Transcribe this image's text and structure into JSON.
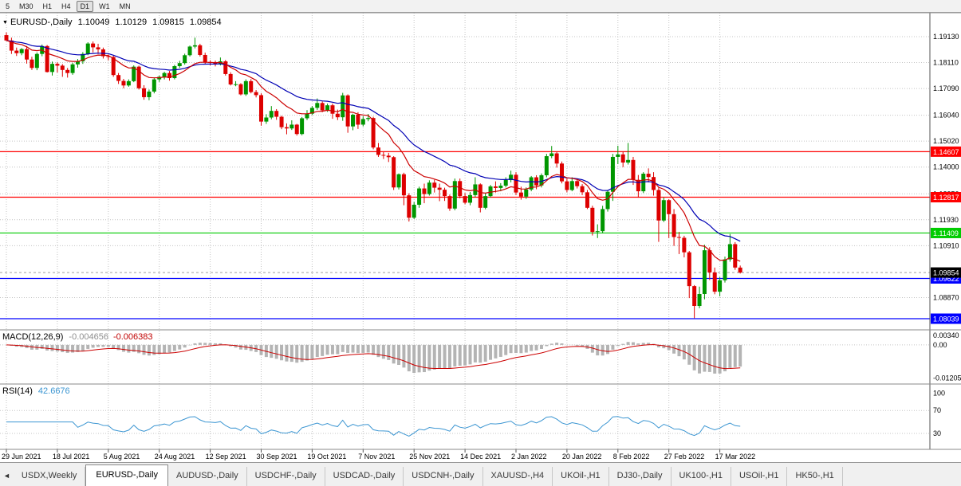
{
  "toolbar": {
    "timeframes": [
      "5",
      "M30",
      "H1",
      "H4",
      "D1",
      "W1",
      "MN"
    ],
    "active_timeframe": "D1"
  },
  "chart_header": {
    "collapse_icon": "▼",
    "symbol": "EURUSD-,Daily",
    "open": "1.10049",
    "high": "1.10129",
    "low": "1.09815",
    "close": "1.09854"
  },
  "tabs": {
    "scroll_left_icon": "◄",
    "active_index": 1,
    "items": [
      "USDX,Weekly",
      "EURUSD-,Daily",
      "AUDUSD-,Daily",
      "USDCHF-,Daily",
      "USDCAD-,Daily",
      "USDCNH-,Daily",
      "XAUUSD-,H4",
      "UKOil-,H1",
      "DJ30-,Daily",
      "UK100-,H1",
      "USOil-,H1",
      "HK50-,H1"
    ]
  },
  "chart_data": {
    "type": "candlestick",
    "title": "EURUSD-,Daily",
    "price_axis": {
      "gridline_values": [
        1.1913,
        1.1811,
        1.1709,
        1.1604,
        1.1502,
        1.14,
        1.1295,
        1.1193,
        1.1091,
        1.0887
      ],
      "gridline_labels": [
        "1.19130",
        "1.18110",
        "1.17090",
        "1.16040",
        "1.15020",
        "1.14000",
        "1.12950",
        "1.11930",
        "1.10910",
        "1.08870"
      ]
    },
    "hlines": [
      {
        "price": 1.14607,
        "label": "1.14607",
        "color": "#ff0000"
      },
      {
        "price": 1.12817,
        "label": "1.12817",
        "color": "#ff0000"
      },
      {
        "price": 1.11409,
        "label": "1.11409",
        "color": "#00cc00"
      },
      {
        "price": 1.09622,
        "label": "1.09622",
        "color": "#0000ff"
      },
      {
        "price": 1.08039,
        "label": "1.08039",
        "color": "#0000ff"
      }
    ],
    "current_price": {
      "value": 1.09854,
      "label": "1.09854"
    },
    "date_ticks": [
      "29 Jun 2021",
      "18 Jul 2021",
      "5 Aug 2021",
      "24 Aug 2021",
      "12 Sep 2021",
      "30 Sep 2021",
      "19 Oct 2021",
      "7 Nov 2021",
      "25 Nov 2021",
      "14 Dec 2021",
      "2 Jan 2022",
      "20 Jan 2022",
      "8 Feb 2022",
      "27 Feb 2022",
      "17 Mar 2022"
    ],
    "candles_per_tick": 10,
    "candles": [
      [
        1.1919,
        1.193,
        1.1896,
        1.1898
      ],
      [
        1.1898,
        1.1909,
        1.1845,
        1.1858
      ],
      [
        1.1858,
        1.187,
        1.1837,
        1.1848
      ],
      [
        1.1848,
        1.1868,
        1.184,
        1.1864
      ],
      [
        1.1864,
        1.1876,
        1.1807,
        1.1823
      ],
      [
        1.1823,
        1.1834,
        1.1782,
        1.179
      ],
      [
        1.179,
        1.1851,
        1.1781,
        1.1845
      ],
      [
        1.1845,
        1.1882,
        1.1836,
        1.1876
      ],
      [
        1.1876,
        1.188,
        1.1772,
        1.1774
      ],
      [
        1.1774,
        1.1815,
        1.176,
        1.1806
      ],
      [
        1.1806,
        1.1812,
        1.1772,
        1.1799
      ],
      [
        1.1799,
        1.1805,
        1.1755,
        1.1782
      ],
      [
        1.1782,
        1.179,
        1.1752,
        1.177
      ],
      [
        1.177,
        1.181,
        1.1763,
        1.1804
      ],
      [
        1.1804,
        1.1825,
        1.1791,
        1.1816
      ],
      [
        1.1816,
        1.1852,
        1.1806,
        1.1845
      ],
      [
        1.1845,
        1.1891,
        1.184,
        1.1886
      ],
      [
        1.1886,
        1.1894,
        1.1851,
        1.1871
      ],
      [
        1.1871,
        1.1885,
        1.1845,
        1.1863
      ],
      [
        1.1863,
        1.187,
        1.1827,
        1.1836
      ],
      [
        1.1836,
        1.1843,
        1.182,
        1.1833
      ],
      [
        1.1833,
        1.1838,
        1.1755,
        1.1762
      ],
      [
        1.1762,
        1.177,
        1.1727,
        1.1739
      ],
      [
        1.1739,
        1.1747,
        1.171,
        1.1721
      ],
      [
        1.1721,
        1.1745,
        1.1716,
        1.1738
      ],
      [
        1.1738,
        1.18,
        1.1734,
        1.1795
      ],
      [
        1.1795,
        1.1799,
        1.1705,
        1.171
      ],
      [
        1.171,
        1.1722,
        1.1665,
        1.1675
      ],
      [
        1.1675,
        1.1705,
        1.1663,
        1.1697
      ],
      [
        1.1697,
        1.1752,
        1.169,
        1.1745
      ],
      [
        1.1745,
        1.176,
        1.1735,
        1.1755
      ],
      [
        1.1755,
        1.1775,
        1.1745,
        1.177
      ],
      [
        1.177,
        1.1778,
        1.174,
        1.175
      ],
      [
        1.175,
        1.1802,
        1.1745,
        1.1797
      ],
      [
        1.1797,
        1.1818,
        1.179,
        1.1809
      ],
      [
        1.1809,
        1.1846,
        1.1803,
        1.184
      ],
      [
        1.184,
        1.1878,
        1.1835,
        1.1874
      ],
      [
        1.1874,
        1.1909,
        1.1867,
        1.1879
      ],
      [
        1.1879,
        1.1885,
        1.1835,
        1.1841
      ],
      [
        1.1841,
        1.185,
        1.1805,
        1.1813
      ],
      [
        1.1813,
        1.182,
        1.18,
        1.181
      ],
      [
        1.181,
        1.1819,
        1.1796,
        1.1805
      ],
      [
        1.1805,
        1.1831,
        1.18,
        1.1816
      ],
      [
        1.1816,
        1.1821,
        1.176,
        1.1766
      ],
      [
        1.1766,
        1.1773,
        1.1721,
        1.1725
      ],
      [
        1.1725,
        1.1738,
        1.1718,
        1.1726
      ],
      [
        1.1726,
        1.173,
        1.1682,
        1.1686
      ],
      [
        1.1686,
        1.1745,
        1.168,
        1.1738
      ],
      [
        1.1738,
        1.1746,
        1.169,
        1.1695
      ],
      [
        1.1695,
        1.1703,
        1.1674,
        1.1683
      ],
      [
        1.1683,
        1.169,
        1.1563,
        1.1579
      ],
      [
        1.1579,
        1.1608,
        1.157,
        1.1595
      ],
      [
        1.1595,
        1.164,
        1.1588,
        1.1621
      ],
      [
        1.1621,
        1.1628,
        1.1586,
        1.1598
      ],
      [
        1.1598,
        1.1602,
        1.1549,
        1.1557
      ],
      [
        1.1557,
        1.1572,
        1.1529,
        1.1552
      ],
      [
        1.1552,
        1.1584,
        1.1546,
        1.1567
      ],
      [
        1.1567,
        1.157,
        1.1524,
        1.153
      ],
      [
        1.153,
        1.1597,
        1.1525,
        1.1592
      ],
      [
        1.1592,
        1.1624,
        1.1585,
        1.161
      ],
      [
        1.161,
        1.164,
        1.1605,
        1.1633
      ],
      [
        1.1633,
        1.167,
        1.1625,
        1.1652
      ],
      [
        1.1652,
        1.1658,
        1.1616,
        1.1623
      ],
      [
        1.1623,
        1.165,
        1.1617,
        1.1643
      ],
      [
        1.1643,
        1.165,
        1.159,
        1.161
      ],
      [
        1.161,
        1.1626,
        1.1585,
        1.1596
      ],
      [
        1.1596,
        1.1692,
        1.1582,
        1.1682
      ],
      [
        1.1682,
        1.1686,
        1.1535,
        1.156
      ],
      [
        1.156,
        1.161,
        1.1545,
        1.1606
      ],
      [
        1.1606,
        1.1616,
        1.155,
        1.1567
      ],
      [
        1.1567,
        1.16,
        1.156,
        1.1589
      ],
      [
        1.1589,
        1.1609,
        1.158,
        1.1593
      ],
      [
        1.1593,
        1.1598,
        1.147,
        1.1477
      ],
      [
        1.1477,
        1.1495,
        1.144,
        1.1448
      ],
      [
        1.1448,
        1.146,
        1.1432,
        1.1445
      ],
      [
        1.1445,
        1.1456,
        1.142,
        1.1439
      ],
      [
        1.1439,
        1.1443,
        1.131,
        1.132
      ],
      [
        1.132,
        1.1375,
        1.1312,
        1.1372
      ],
      [
        1.1372,
        1.1378,
        1.125,
        1.1289
      ],
      [
        1.1289,
        1.1297,
        1.1186,
        1.1201
      ],
      [
        1.1201,
        1.1263,
        1.1196,
        1.1252
      ],
      [
        1.1252,
        1.1323,
        1.124,
        1.1316
      ],
      [
        1.1316,
        1.1335,
        1.1258,
        1.1294
      ],
      [
        1.1294,
        1.1348,
        1.1288,
        1.1339
      ],
      [
        1.1339,
        1.135,
        1.13,
        1.1319
      ],
      [
        1.1319,
        1.1335,
        1.1266,
        1.1311
      ],
      [
        1.1311,
        1.1319,
        1.1267,
        1.1286
      ],
      [
        1.1286,
        1.1292,
        1.1228,
        1.1237
      ],
      [
        1.1237,
        1.1355,
        1.123,
        1.1345
      ],
      [
        1.1345,
        1.1355,
        1.1277,
        1.1286
      ],
      [
        1.1286,
        1.1298,
        1.1254,
        1.126
      ],
      [
        1.126,
        1.1302,
        1.125,
        1.129
      ],
      [
        1.129,
        1.136,
        1.1282,
        1.1332
      ],
      [
        1.1332,
        1.1336,
        1.1222,
        1.124
      ],
      [
        1.124,
        1.1296,
        1.1234,
        1.1286
      ],
      [
        1.1286,
        1.133,
        1.128,
        1.1324
      ],
      [
        1.1324,
        1.1344,
        1.13,
        1.1318
      ],
      [
        1.1318,
        1.1337,
        1.1305,
        1.1327
      ],
      [
        1.1327,
        1.136,
        1.132,
        1.1349
      ],
      [
        1.1349,
        1.1386,
        1.134,
        1.137
      ],
      [
        1.137,
        1.138,
        1.129,
        1.13
      ],
      [
        1.13,
        1.1323,
        1.1272,
        1.1284
      ],
      [
        1.1284,
        1.132,
        1.1275,
        1.1312
      ],
      [
        1.1312,
        1.1365,
        1.1305,
        1.136
      ],
      [
        1.136,
        1.1368,
        1.1313,
        1.1328
      ],
      [
        1.1328,
        1.1375,
        1.132,
        1.1368
      ],
      [
        1.1368,
        1.1452,
        1.136,
        1.1443
      ],
      [
        1.1443,
        1.1483,
        1.1435,
        1.1454
      ],
      [
        1.1454,
        1.146,
        1.1398,
        1.1414
      ],
      [
        1.1414,
        1.1422,
        1.1336,
        1.1344
      ],
      [
        1.1344,
        1.1355,
        1.1301,
        1.131
      ],
      [
        1.131,
        1.136,
        1.1305,
        1.1345
      ],
      [
        1.1345,
        1.1352,
        1.1316,
        1.1325
      ],
      [
        1.1325,
        1.1333,
        1.129,
        1.1301
      ],
      [
        1.1301,
        1.131,
        1.1235,
        1.124
      ],
      [
        1.124,
        1.1248,
        1.1131,
        1.1145
      ],
      [
        1.1145,
        1.1175,
        1.1121,
        1.1148
      ],
      [
        1.1148,
        1.1248,
        1.114,
        1.1235
      ],
      [
        1.1235,
        1.131,
        1.1225,
        1.1303
      ],
      [
        1.1303,
        1.1452,
        1.1267,
        1.144
      ],
      [
        1.144,
        1.1484,
        1.1412,
        1.145
      ],
      [
        1.145,
        1.1462,
        1.14,
        1.1418
      ],
      [
        1.1418,
        1.1495,
        1.141,
        1.1428
      ],
      [
        1.1428,
        1.144,
        1.133,
        1.135
      ],
      [
        1.135,
        1.1369,
        1.128,
        1.1305
      ],
      [
        1.1305,
        1.138,
        1.1298,
        1.1374
      ],
      [
        1.1374,
        1.1395,
        1.134,
        1.1361
      ],
      [
        1.1361,
        1.138,
        1.1288,
        1.131
      ],
      [
        1.131,
        1.132,
        1.1106,
        1.119
      ],
      [
        1.119,
        1.128,
        1.1184,
        1.127
      ],
      [
        1.127,
        1.1274,
        1.1121,
        1.1215
      ],
      [
        1.1215,
        1.1235,
        1.109,
        1.1125
      ],
      [
        1.1125,
        1.1145,
        1.1058,
        1.1122
      ],
      [
        1.1122,
        1.113,
        1.1045,
        1.1065
      ],
      [
        1.1065,
        1.107,
        1.0885,
        1.0932
      ],
      [
        1.0932,
        1.0936,
        1.0806,
        1.0854
      ],
      [
        1.0854,
        1.093,
        1.0845,
        1.0901
      ],
      [
        1.0901,
        1.1095,
        1.088,
        1.1073
      ],
      [
        1.1073,
        1.1085,
        1.0956,
        1.0986
      ],
      [
        1.0986,
        1.1005,
        1.09,
        1.091
      ],
      [
        1.091,
        1.0968,
        1.0892,
        1.0955
      ],
      [
        1.0955,
        1.1048,
        1.0946,
        1.1037
      ],
      [
        1.1037,
        1.1137,
        1.1028,
        1.1097
      ],
      [
        1.1097,
        1.1105,
        1.0996,
        1.1005
      ],
      [
        1.10049,
        1.10129,
        1.09815,
        1.09854
      ]
    ],
    "indicators": {
      "ma_fast": {
        "type": "EMA",
        "period": 12
      },
      "ma_slow": {
        "type": "EMA",
        "period": 26
      },
      "macd": {
        "label": "MACD(12,26,9)",
        "fast": 12,
        "slow": 26,
        "signal": 9,
        "value_main": "-0.004656",
        "value_signal": "-0.006383",
        "scale_labels": [
          {
            "value": 0.0034,
            "label": "0.00340"
          },
          {
            "value": 0,
            "label": "0.00"
          },
          {
            "value": -0.01205,
            "label": "-0.01205"
          }
        ]
      },
      "rsi": {
        "label": "RSI(14)",
        "period": 14,
        "value": "42.6676",
        "levels": [
          {
            "value": 100,
            "label": "100"
          },
          {
            "value": 70,
            "label": "70"
          },
          {
            "value": 30,
            "label": "30"
          }
        ],
        "dotted_levels": [
          70,
          30
        ]
      }
    },
    "colors": {
      "up": "#009600",
      "down": "#dd0000",
      "ma_fast": "#cc0000",
      "ma_slow": "#0000b4",
      "grid": "#c4c4c4",
      "macd_hist": "#b4b4b4",
      "macd_signal": "#cc0000",
      "rsi_line": "#3c96d2",
      "axis_text": "#000000",
      "tag_text": "#ffffff",
      "current_tag_bg": "#000000",
      "current_line": "#666666"
    }
  }
}
